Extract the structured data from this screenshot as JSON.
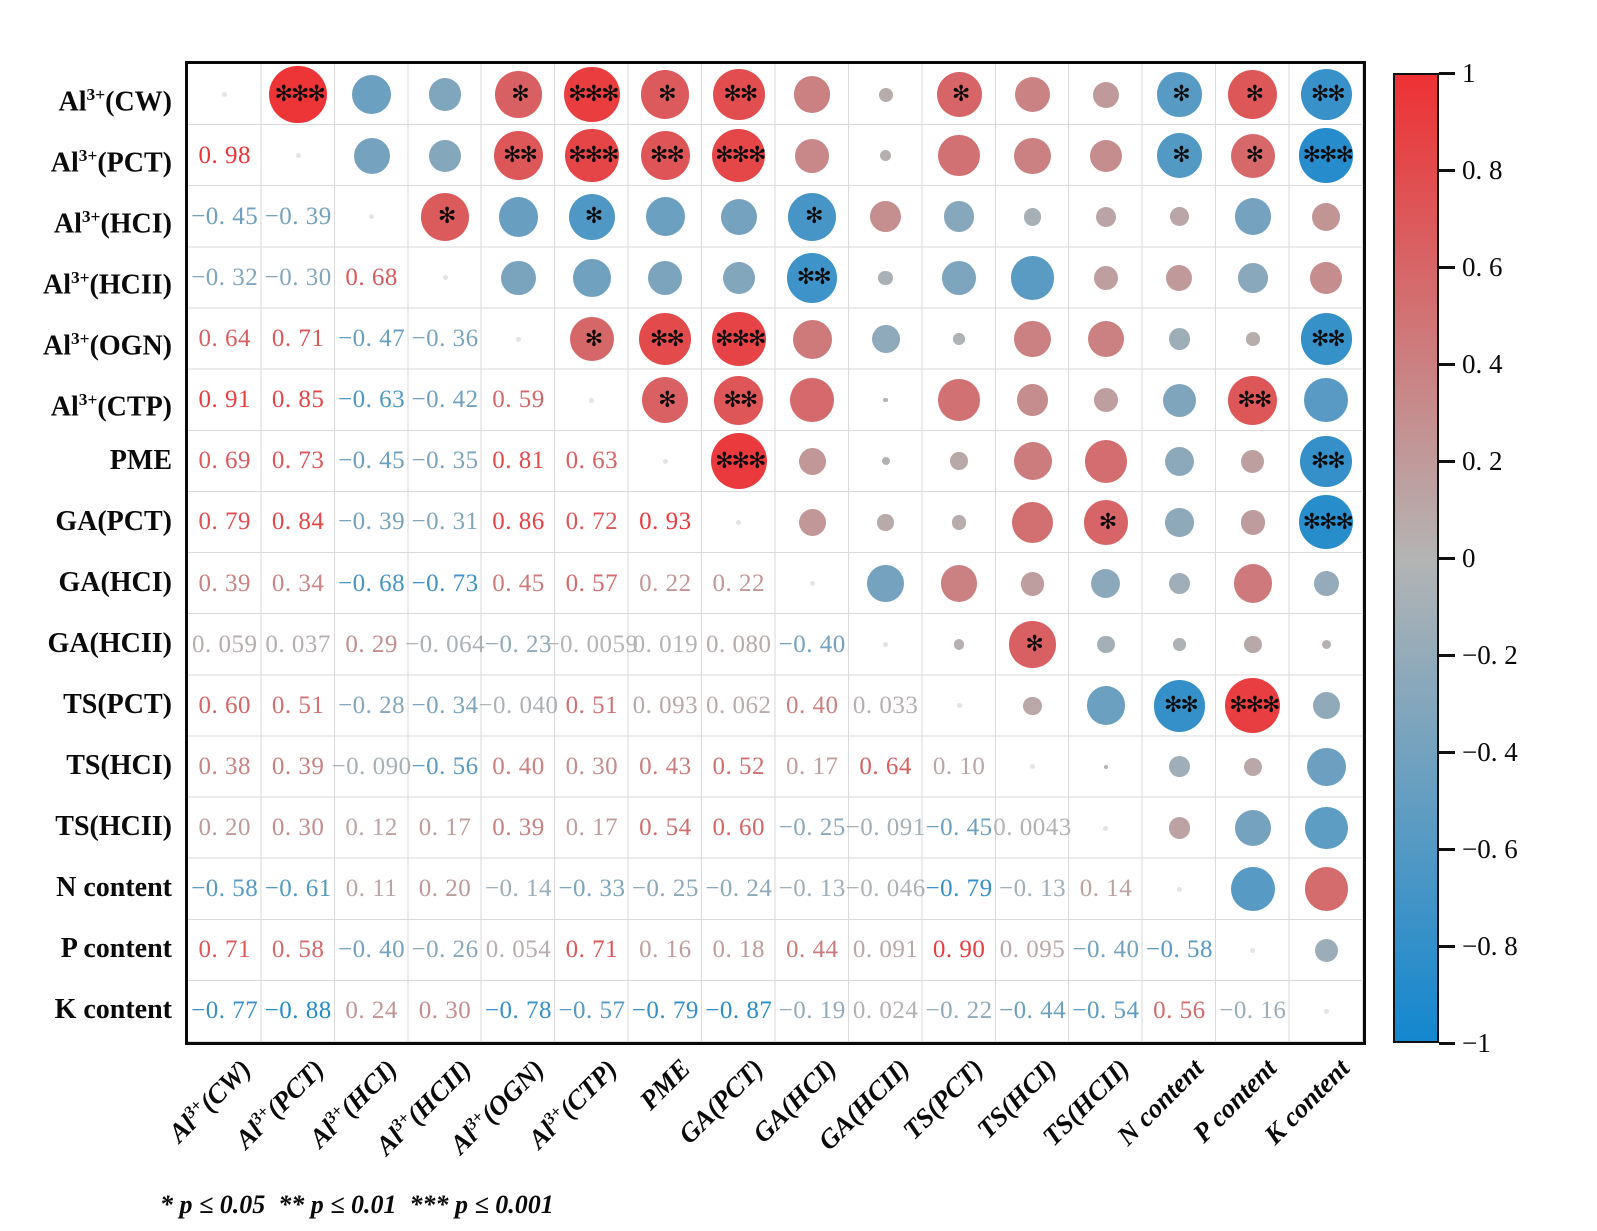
{
  "chart_data": {
    "type": "heatmap",
    "variant": "correlation-matrix-corrplot",
    "labels": [
      "Al3+(CW)",
      "Al3+(PCT)",
      "Al3+(HCI)",
      "Al3+(HCII)",
      "Al3+(OGN)",
      "Al3+(CTP)",
      "PME",
      "GA(PCT)",
      "GA(HCI)",
      "GA(HCII)",
      "TS(PCT)",
      "TS(HCI)",
      "TS(HCII)",
      "N content",
      "P content",
      "K content"
    ],
    "lower_triangle_values": [
      [
        "0. 98"
      ],
      [
        "−0. 45",
        "−0. 39"
      ],
      [
        "−0. 32",
        "−0. 30",
        "0. 68"
      ],
      [
        "0. 64",
        "0. 71",
        "−0. 47",
        "−0. 36"
      ],
      [
        "0. 91",
        "0. 85",
        "−0. 63",
        "−0. 42",
        "0. 59"
      ],
      [
        "0. 69",
        "0. 73",
        "−0. 45",
        "−0. 35",
        "0. 81",
        "0. 63"
      ],
      [
        "0. 79",
        "0. 84",
        "−0. 39",
        "−0. 31",
        "0. 86",
        "0. 72",
        "0. 93"
      ],
      [
        "0. 39",
        "0. 34",
        "−0. 68",
        "−0. 73",
        "0. 45",
        "0. 57",
        "0. 22",
        "0. 22"
      ],
      [
        "0. 059",
        "0. 037",
        "0. 29",
        "−0. 064",
        "−0. 23",
        "−0. 0059",
        "0. 019",
        "0. 080",
        "−0. 40"
      ],
      [
        "0. 60",
        "0. 51",
        "−0. 28",
        "−0. 34",
        "−0. 040",
        "0. 51",
        "0. 093",
        "0. 062",
        "0. 40",
        "0. 033"
      ],
      [
        "0. 38",
        "0. 39",
        "−0. 090",
        "−0. 56",
        "0. 40",
        "0. 30",
        "0. 43",
        "0. 52",
        "0. 17",
        "0. 64",
        "0. 10"
      ],
      [
        "0. 20",
        "0. 30",
        "0. 12",
        "0. 17",
        "0. 39",
        "0. 17",
        "0. 54",
        "0. 60",
        "−0. 25",
        "−0. 091",
        "−0. 45",
        "0. 0043"
      ],
      [
        "−0. 58",
        "−0. 61",
        "0. 11",
        "0. 20",
        "−0. 14",
        "−0. 33",
        "−0. 25",
        "−0. 24",
        "−0. 13",
        "−0. 046",
        "−0. 79",
        "−0. 13",
        "0. 14"
      ],
      [
        "0. 71",
        "0. 58",
        "−0. 40",
        "−0. 26",
        "0. 054",
        "0. 71",
        "0. 16",
        "0. 18",
        "0. 44",
        "0. 091",
        "0. 90",
        "0. 095",
        "−0. 40",
        "−0. 58"
      ],
      [
        "−0. 77",
        "−0. 88",
        "0. 24",
        "0. 30",
        "−0. 78",
        "−0. 57",
        "−0. 79",
        "−0. 87",
        "−0. 19",
        "0. 024",
        "−0. 22",
        "−0. 44",
        "−0. 54",
        "0. 56",
        "−0. 16"
      ]
    ],
    "significance_stars": {
      "1-2": "***",
      "1-5": "*",
      "1-6": "***",
      "1-7": "*",
      "1-8": "**",
      "1-11": "*",
      "1-14": "*",
      "1-15": "*",
      "1-16": "**",
      "2-5": "**",
      "2-6": "***",
      "2-7": "**",
      "2-8": "***",
      "2-14": "*",
      "2-15": "*",
      "2-16": "***",
      "3-4": "*",
      "3-6": "*",
      "3-9": "*",
      "4-9": "**",
      "5-6": "*",
      "5-7": "**",
      "5-8": "***",
      "5-16": "**",
      "6-7": "*",
      "6-8": "**",
      "6-15": "**",
      "7-8": "***",
      "7-16": "**",
      "8-13": "*",
      "8-16": "***",
      "10-12": "*",
      "11-14": "**",
      "11-15": "***"
    },
    "colorbar": {
      "ticks": [
        "1",
        "0. 8",
        "0. 6",
        "0. 4",
        "0. 2",
        "0",
        "−0. 2",
        "−0. 4",
        "−0. 6",
        "−0. 8",
        "−1"
      ],
      "range": [
        -1,
        1
      ],
      "color_positive": "#ee3134",
      "color_zero": "#b4b4b4",
      "color_negative": "#1387cf"
    },
    "significance_note": "* p ≤ 0.05  ** p ≤ 0.01  *** p ≤ 0.001",
    "star_glyph": "✻"
  }
}
